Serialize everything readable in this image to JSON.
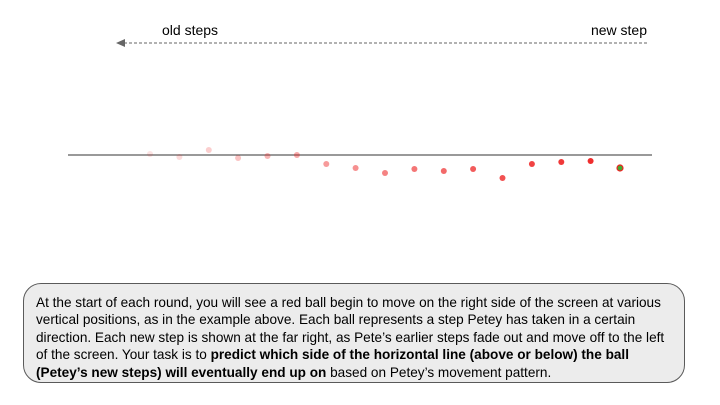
{
  "labels": {
    "old_steps": "old steps",
    "new_step": "new step"
  },
  "ball_color": "#ee2222",
  "current_ball_color": "#44aa33",
  "balls": [
    {
      "offset": -0.04,
      "opacity": 0.12
    },
    {
      "offset": 0.08,
      "opacity": 0.16
    },
    {
      "offset": -0.2,
      "opacity": 0.22
    },
    {
      "offset": 0.12,
      "opacity": 0.27
    },
    {
      "offset": 0.04,
      "opacity": 0.33
    },
    {
      "offset": 0.0,
      "opacity": 0.39
    },
    {
      "offset": 0.36,
      "opacity": 0.45
    },
    {
      "offset": 0.52,
      "opacity": 0.5
    },
    {
      "offset": 0.72,
      "opacity": 0.56
    },
    {
      "offset": 0.56,
      "opacity": 0.62
    },
    {
      "offset": 0.64,
      "opacity": 0.68
    },
    {
      "offset": 0.56,
      "opacity": 0.74
    },
    {
      "offset": 0.92,
      "opacity": 0.79
    },
    {
      "offset": 0.36,
      "opacity": 0.85
    },
    {
      "offset": 0.28,
      "opacity": 0.9
    },
    {
      "offset": 0.24,
      "opacity": 0.95
    },
    {
      "offset": 0.52,
      "opacity": 1.0
    },
    {
      "offset": 0.52,
      "opacity": 1.0,
      "current": true
    }
  ],
  "instructions": {
    "part1": "At the start of each round, you will see a red ball begin to move on the right side of the screen at various vertical positions, as in the example above. Each ball represents a step Petey has taken in a certain direction. Each new step is shown at the far right, as Pete’s earlier steps fade out and move off to the left of the screen. Your task is to ",
    "bold": "predict which side of the horizontal line (above or below) the ball (Petey’s new steps) will eventually end up on",
    "part2": " based on Petey’s movement pattern."
  }
}
